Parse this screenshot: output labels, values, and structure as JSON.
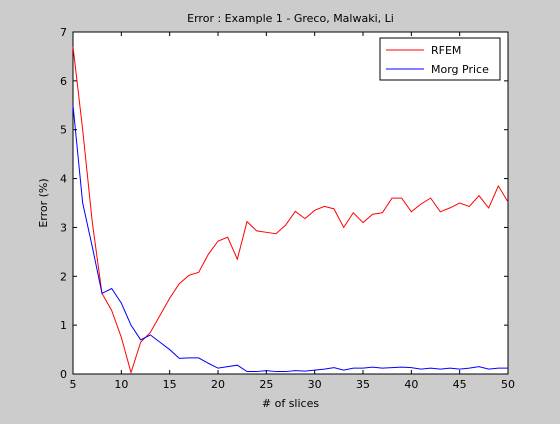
{
  "chart_data": {
    "type": "line",
    "title": "Error : Example 1 - Greco, Malwaki, Li",
    "xlabel": "# of slices",
    "ylabel": "Error (%)",
    "xlim": [
      5,
      50
    ],
    "ylim": [
      0,
      7
    ],
    "xticks": [
      5,
      10,
      15,
      20,
      25,
      30,
      35,
      40,
      45,
      50
    ],
    "yticks": [
      0,
      1,
      2,
      3,
      4,
      5,
      6,
      7
    ],
    "grid": false,
    "legend_position": "top-right",
    "x": [
      5,
      6,
      7,
      8,
      9,
      10,
      11,
      12,
      13,
      14,
      15,
      16,
      17,
      18,
      19,
      20,
      21,
      22,
      23,
      24,
      25,
      26,
      27,
      28,
      29,
      30,
      31,
      32,
      33,
      34,
      35,
      36,
      37,
      38,
      39,
      40,
      41,
      42,
      43,
      44,
      45,
      46,
      47,
      48,
      49,
      50
    ],
    "series": [
      {
        "name": "RFEM",
        "color": "#ff0000",
        "values": [
          6.7,
          5.0,
          3.1,
          1.65,
          1.3,
          0.75,
          0.03,
          0.65,
          0.85,
          1.2,
          1.55,
          1.85,
          2.02,
          2.08,
          2.45,
          2.72,
          2.8,
          2.35,
          3.12,
          2.93,
          2.9,
          2.87,
          3.05,
          3.33,
          3.18,
          3.35,
          3.43,
          3.38,
          3.0,
          3.3,
          3.1,
          3.27,
          3.3,
          3.6,
          3.6,
          3.32,
          3.48,
          3.6,
          3.32,
          3.4,
          3.5,
          3.43,
          3.65,
          3.4,
          3.85,
          3.52
        ]
      },
      {
        "name": "Morg Price",
        "color": "#0000ff",
        "values": [
          5.5,
          3.5,
          2.6,
          1.65,
          1.75,
          1.45,
          1.0,
          0.7,
          0.8,
          0.65,
          0.5,
          0.32,
          0.33,
          0.33,
          0.22,
          0.12,
          0.15,
          0.18,
          0.05,
          0.05,
          0.07,
          0.05,
          0.05,
          0.07,
          0.06,
          0.08,
          0.1,
          0.13,
          0.08,
          0.12,
          0.12,
          0.14,
          0.12,
          0.13,
          0.14,
          0.13,
          0.1,
          0.12,
          0.1,
          0.12,
          0.1,
          0.12,
          0.15,
          0.1,
          0.12,
          0.12
        ]
      }
    ]
  }
}
